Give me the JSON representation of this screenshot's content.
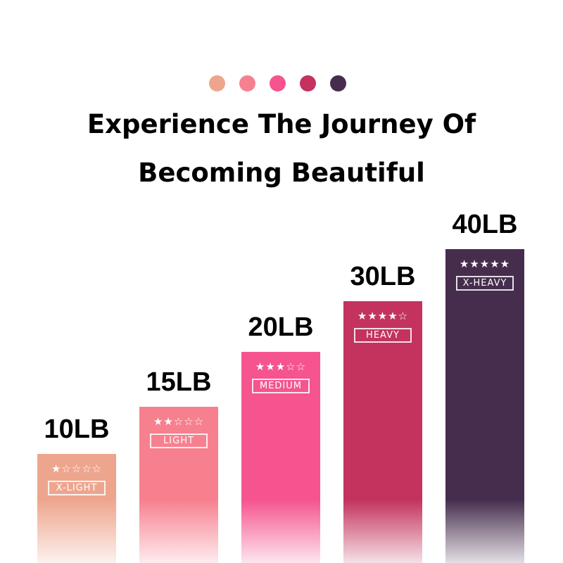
{
  "title_line1": "Experience The Journey Of",
  "title_line2": "Becoming Beautiful",
  "colors": [
    "#eea58e",
    "#f7808f",
    "#f5548f",
    "#c3335d",
    "#462d4d"
  ],
  "levels": [
    {
      "weight": "10LB",
      "stars": "★☆☆☆☆",
      "rating": 1,
      "name": "X-LIGHT",
      "color": "#eea58e"
    },
    {
      "weight": "15LB",
      "stars": "★★☆☆☆",
      "rating": 2,
      "name": "LIGHT",
      "color": "#f7808f"
    },
    {
      "weight": "20LB",
      "stars": "★★★☆☆",
      "rating": 3,
      "name": "MEDIUM",
      "color": "#f5548f"
    },
    {
      "weight": "30LB",
      "stars": "★★★★☆",
      "rating": 4,
      "name": "HEAVY",
      "color": "#c3335d"
    },
    {
      "weight": "40LB",
      "stars": "★★★★★",
      "rating": 5,
      "name": "X-HEAVY",
      "color": "#462d4d"
    }
  ]
}
